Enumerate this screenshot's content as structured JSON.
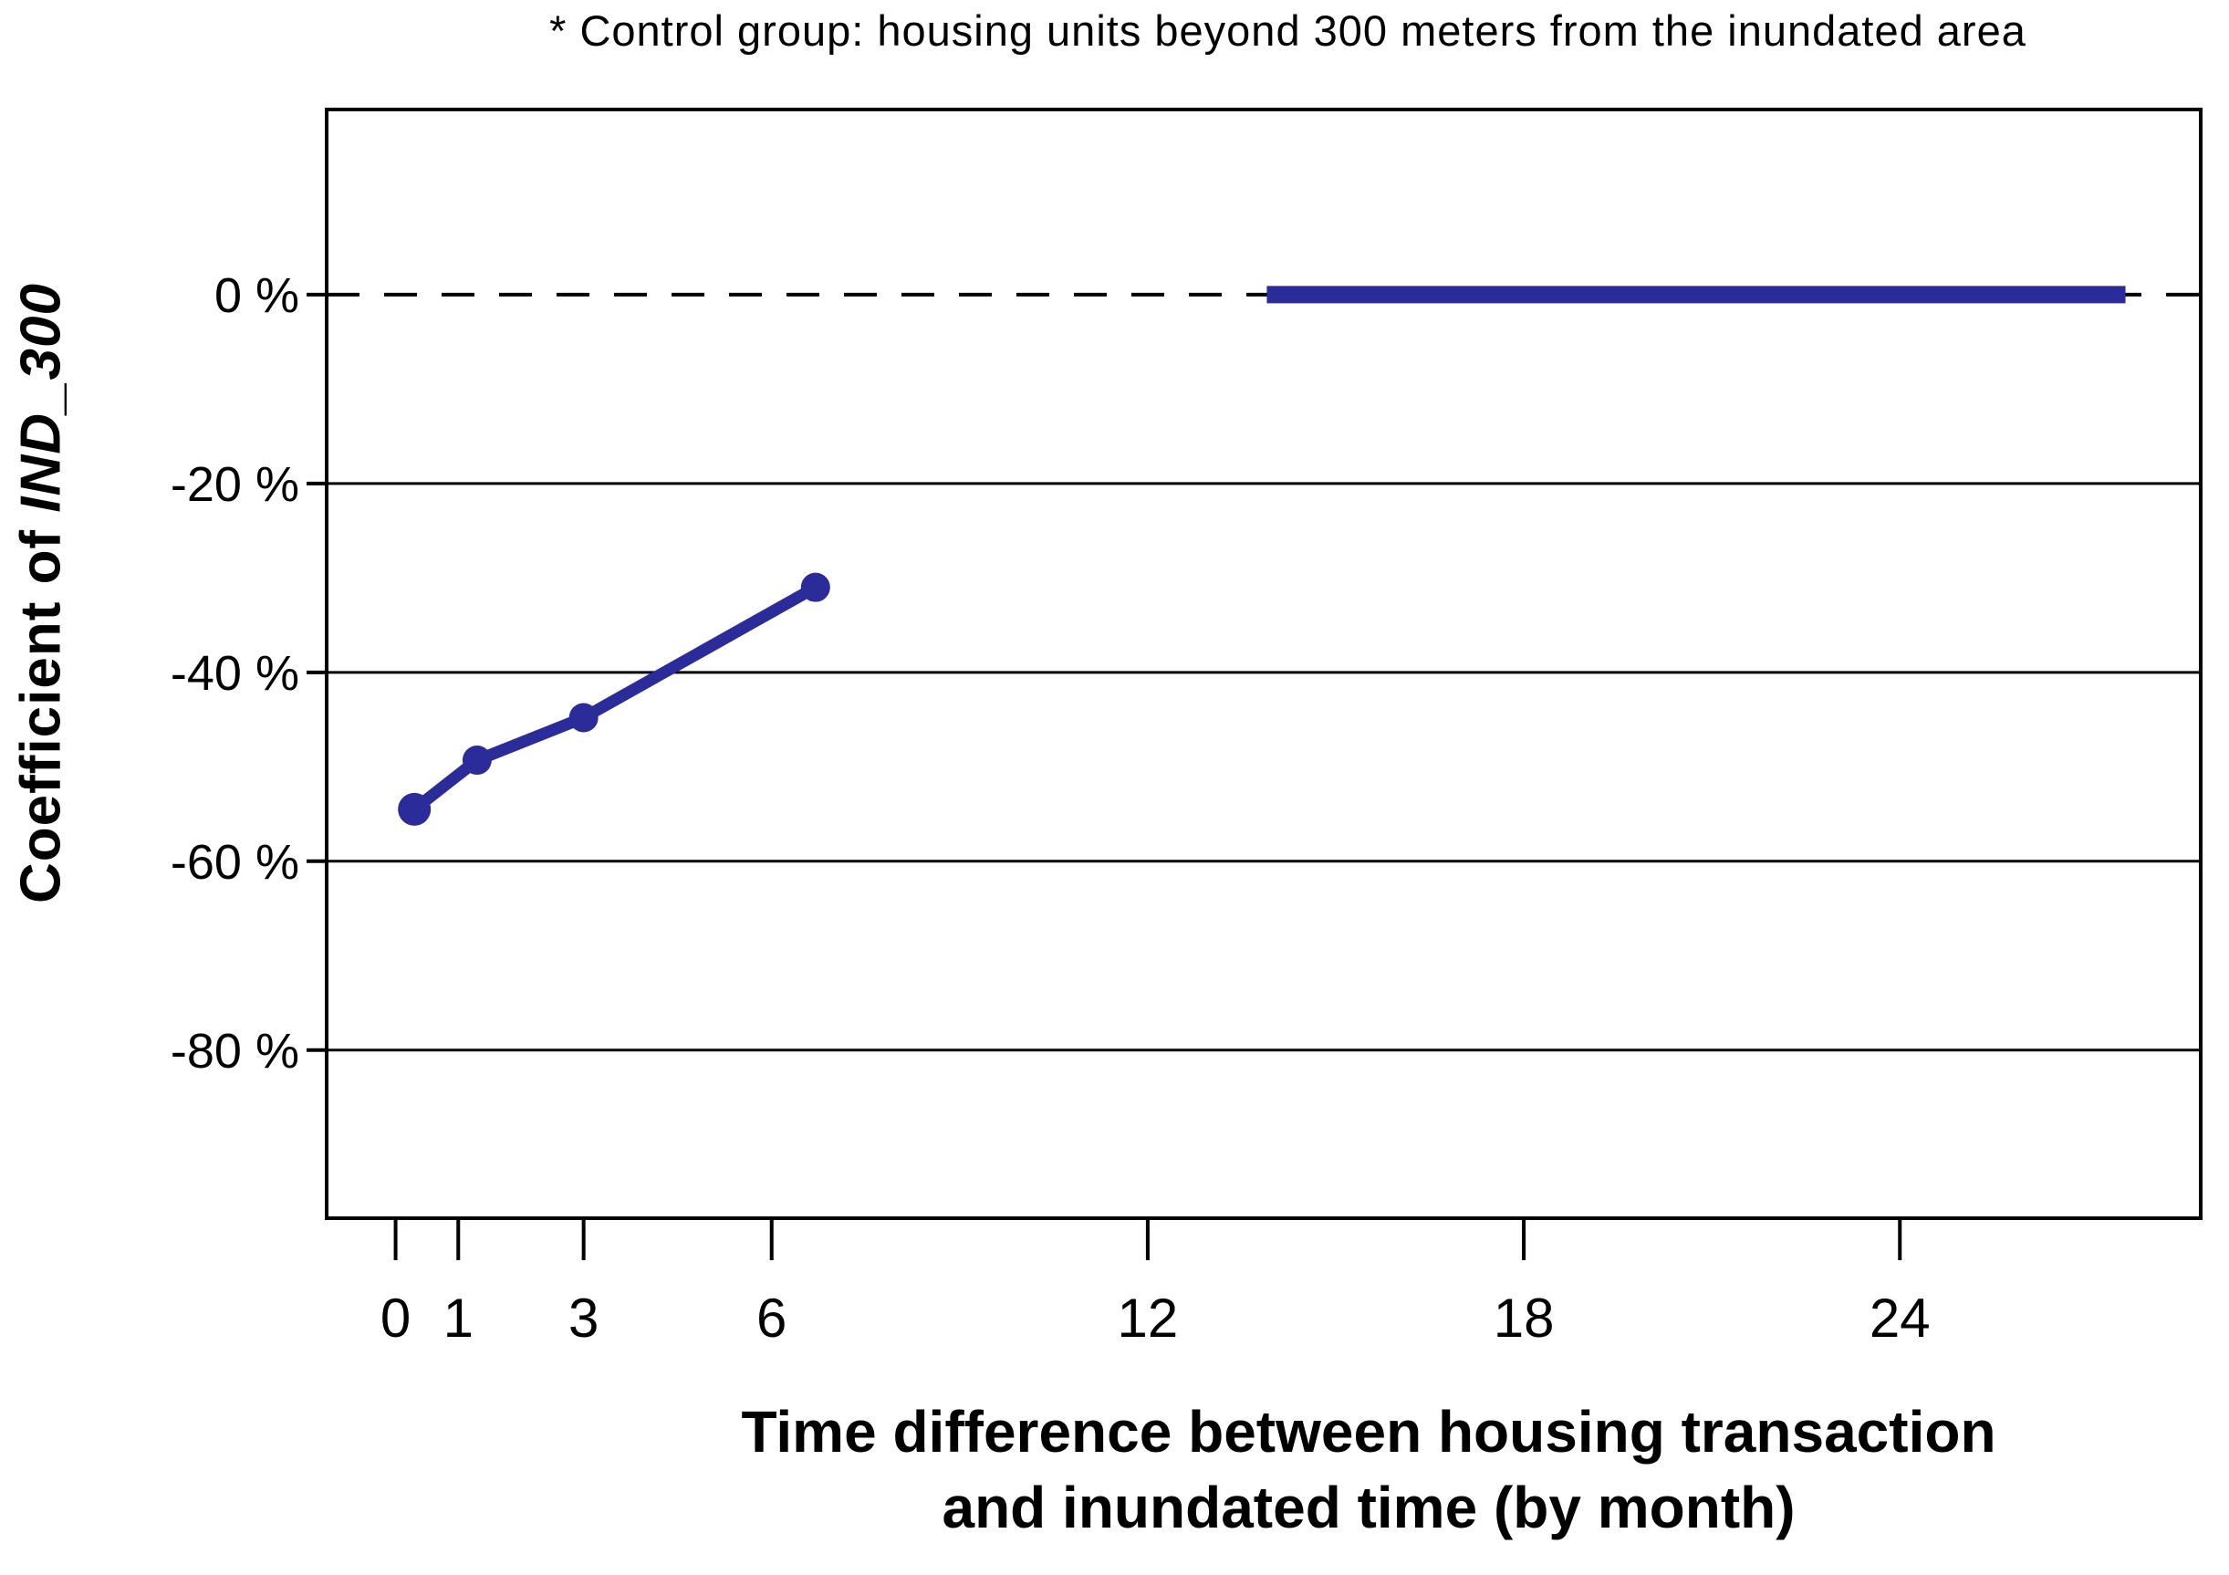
{
  "chart": {
    "title": "* Control group: housing units beyond 300 meters from the inundated area",
    "y_axis": {
      "label_prefix": "Coefficient of ",
      "label_var": "IND_300",
      "tick_suffix": " %"
    },
    "x_axis": {
      "label_line1": "Time difference between housing transaction",
      "label_line2": "and inundated time (by month)"
    }
  },
  "chart_data": {
    "type": "line",
    "title": "* Control group: housing units beyond 300 meters from the inundated area",
    "xlabel": "Time difference between housing transaction and inundated time (by month)",
    "ylabel": "Coefficient of IND_300",
    "x_ticks": [
      0,
      1,
      3,
      6,
      12,
      18,
      24
    ],
    "y_ticks": [
      0,
      -20,
      -40,
      -60,
      -80
    ],
    "y_tick_labels": [
      "0 %",
      "-20 %",
      "-40 %",
      "-60 %",
      "-80 %"
    ],
    "xlim": [
      -1.1,
      28.8
    ],
    "ylim": [
      -97.8,
      19.6
    ],
    "grid": "horizontal",
    "legend": "none",
    "zero_line": {
      "y": 0,
      "style": "dashed",
      "color": "#000000"
    },
    "series": [
      {
        "name": "coefficient_by_time_bin",
        "style": "line_with_markers",
        "color": "#2B2C99",
        "points": [
          {
            "x": 0.3,
            "y": -54.5
          },
          {
            "x": 1.3,
            "y": -49.3
          },
          {
            "x": 3.0,
            "y": -44.8
          },
          {
            "x": 6.7,
            "y": -31.0
          }
        ]
      },
      {
        "name": "zero_effect_segment",
        "style": "thick_horizontal_segment",
        "color": "#2B2C99",
        "y": 0,
        "x_start": 13.9,
        "x_end": 27.6
      }
    ]
  },
  "colors": {
    "line": "#2B2C99",
    "axis": "#000000",
    "background": "#FFFFFF"
  }
}
